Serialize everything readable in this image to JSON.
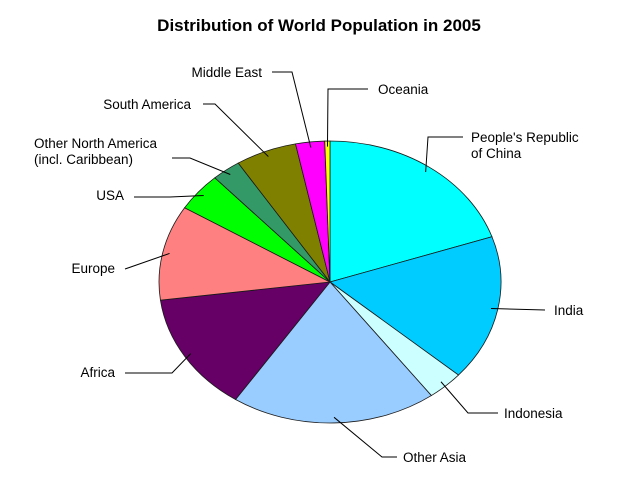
{
  "chart_data": {
    "type": "pie",
    "title": "Distribution of World Population in 2005",
    "unit": "percent",
    "slices": [
      {
        "label": "People's Republic\nof China",
        "value": 20.2,
        "color": "#00ffff"
      },
      {
        "label": "India",
        "value": 17.0,
        "color": "#00ccff"
      },
      {
        "label": "Indonesia",
        "value": 3.5,
        "color": "#ccffff"
      },
      {
        "label": "Other Asia",
        "value": 19.8,
        "color": "#99ccff"
      },
      {
        "label": "Africa",
        "value": 13.9,
        "color": "#660066"
      },
      {
        "label": "Europe",
        "value": 11.1,
        "color": "#ff8080"
      },
      {
        "label": "USA",
        "value": 4.5,
        "color": "#00ff00"
      },
      {
        "label": "Other North America\n(incl. Caribbean)",
        "value": 2.8,
        "color": "#339966"
      },
      {
        "label": "South America",
        "value": 5.9,
        "color": "#808000"
      },
      {
        "label": "Middle East",
        "value": 2.8,
        "color": "#ff00ff"
      },
      {
        "label": "Oceania",
        "value": 0.5,
        "color": "#ffff00"
      }
    ],
    "legend": "none"
  }
}
